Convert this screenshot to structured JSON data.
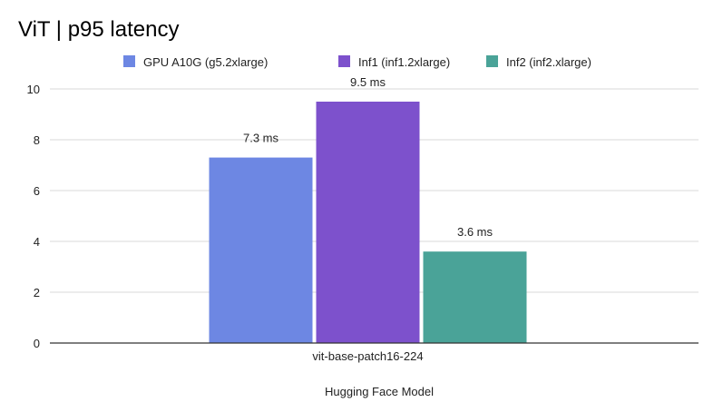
{
  "chart_data": {
    "type": "bar",
    "title": "ViT | p95 latency",
    "xlabel": "Hugging Face Model",
    "ylabel": "",
    "categories": [
      "vit-base-patch16-224"
    ],
    "ylim": [
      0,
      10
    ],
    "yticks": [
      0,
      2,
      4,
      6,
      8,
      10
    ],
    "grid": true,
    "legend_position": "top",
    "series": [
      {
        "name": "GPU A10G (g5.2xlarge)",
        "values": [
          7.3
        ],
        "labels": [
          "7.3 ms"
        ],
        "color": "#6d87e3"
      },
      {
        "name": "Inf1 (inf1.2xlarge)",
        "values": [
          9.5
        ],
        "labels": [
          "9.5 ms"
        ],
        "color": "#7d51cc"
      },
      {
        "name": "Inf2 (inf2.xlarge)",
        "values": [
          3.6
        ],
        "labels": [
          "3.6 ms"
        ],
        "color": "#4aa398"
      }
    ]
  }
}
